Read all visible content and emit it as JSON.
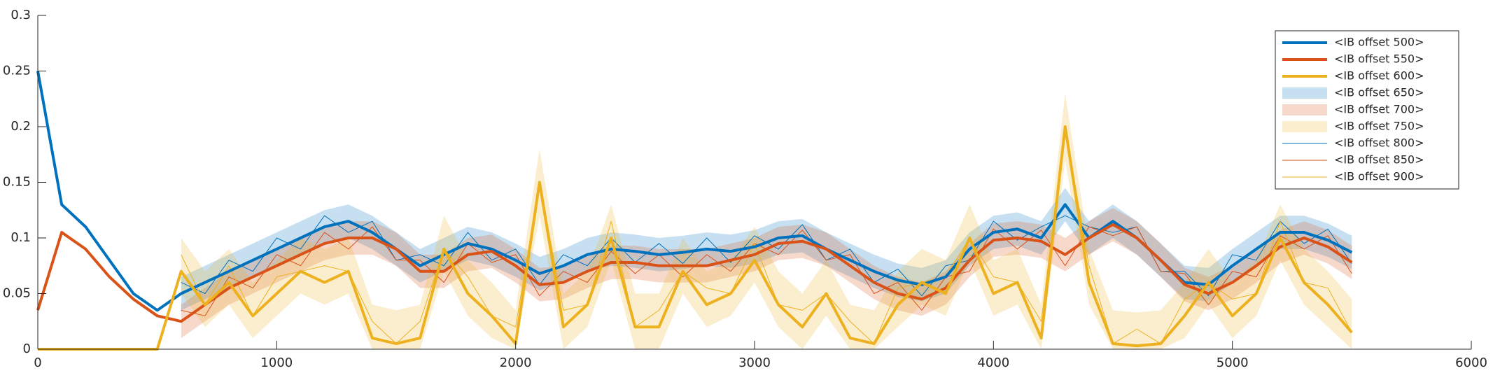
{
  "chart_data": {
    "type": "line",
    "x": [
      0,
      100,
      200,
      300,
      400,
      500,
      600,
      700,
      800,
      900,
      1000,
      1100,
      1200,
      1300,
      1400,
      1500,
      1600,
      1700,
      1800,
      1900,
      2000,
      2100,
      2200,
      2300,
      2400,
      2500,
      2600,
      2700,
      2800,
      2900,
      3000,
      3100,
      3200,
      3300,
      3400,
      3500,
      3600,
      3700,
      3800,
      3900,
      4000,
      4100,
      4200,
      4300,
      4400,
      4500,
      4600,
      4700,
      4800,
      4900,
      5000,
      5100,
      5200,
      5300,
      5400,
      5500
    ],
    "xlim": [
      0,
      6000
    ],
    "xticks": [
      0,
      1000,
      2000,
      3000,
      4000,
      5000,
      6000
    ],
    "ylim": [
      0,
      0.3
    ],
    "yticks": [
      0,
      0.05,
      0.1,
      0.15,
      0.2,
      0.25,
      0.3
    ],
    "legend": "northeast",
    "series": [
      {
        "name": "<IB offset 500>",
        "color": "#0072bd",
        "kind": "thick",
        "values": [
          0.25,
          0.13,
          0.11,
          0.08,
          0.05,
          0.035,
          0.05,
          0.06,
          0.07,
          0.08,
          0.09,
          0.1,
          0.11,
          0.115,
          0.105,
          0.09,
          0.075,
          0.085,
          0.095,
          0.09,
          0.08,
          0.068,
          0.075,
          0.085,
          0.09,
          0.088,
          0.085,
          0.087,
          0.09,
          0.088,
          0.092,
          0.1,
          0.102,
          0.09,
          0.08,
          0.07,
          0.062,
          0.058,
          0.065,
          0.09,
          0.105,
          0.108,
          0.1,
          0.13,
          0.1,
          0.115,
          0.1,
          0.08,
          0.06,
          0.058,
          0.075,
          0.09,
          0.105,
          0.105,
          0.098,
          0.087
        ]
      },
      {
        "name": "<IB offset 550>",
        "color": "#d95319",
        "kind": "thick",
        "values": [
          0.035,
          0.105,
          0.09,
          0.065,
          0.045,
          0.03,
          0.025,
          0.04,
          0.055,
          0.065,
          0.075,
          0.085,
          0.095,
          0.1,
          0.1,
          0.09,
          0.07,
          0.07,
          0.085,
          0.088,
          0.075,
          0.058,
          0.06,
          0.07,
          0.078,
          0.078,
          0.075,
          0.075,
          0.075,
          0.08,
          0.085,
          0.095,
          0.097,
          0.09,
          0.075,
          0.06,
          0.05,
          0.045,
          0.055,
          0.08,
          0.098,
          0.1,
          0.097,
          0.085,
          0.1,
          0.112,
          0.1,
          0.08,
          0.058,
          0.05,
          0.06,
          0.075,
          0.092,
          0.1,
          0.092,
          0.078
        ]
      },
      {
        "name": "<IB offset 600>",
        "color": "#edb120",
        "kind": "thick",
        "values": [
          0,
          0,
          0,
          0,
          0,
          0,
          0.07,
          0.04,
          0.06,
          0.03,
          0.05,
          0.07,
          0.06,
          0.07,
          0.01,
          0.005,
          0.01,
          0.09,
          0.05,
          0.03,
          0.005,
          0.15,
          0.02,
          0.04,
          0.1,
          0.02,
          0.02,
          0.07,
          0.04,
          0.05,
          0.08,
          0.04,
          0.02,
          0.05,
          0.01,
          0.005,
          0.04,
          0.06,
          0.05,
          0.1,
          0.05,
          0.06,
          0.01,
          0.2,
          0.06,
          0.005,
          0.003,
          0.005,
          0.03,
          0.06,
          0.03,
          0.05,
          0.1,
          0.06,
          0.04,
          0.015
        ]
      },
      {
        "name": "<IB offset 650>",
        "color": "#0072bd",
        "kind": "band",
        "lower": [
          null,
          null,
          null,
          null,
          null,
          null,
          0.035,
          0.045,
          0.055,
          0.065,
          0.075,
          0.085,
          0.095,
          0.1,
          0.09,
          0.075,
          0.06,
          0.07,
          0.08,
          0.075,
          0.065,
          0.053,
          0.06,
          0.07,
          0.075,
          0.073,
          0.07,
          0.072,
          0.075,
          0.073,
          0.077,
          0.085,
          0.087,
          0.075,
          0.065,
          0.055,
          0.047,
          0.043,
          0.05,
          0.075,
          0.09,
          0.093,
          0.085,
          0.115,
          0.085,
          0.1,
          0.085,
          0.065,
          0.045,
          0.043,
          0.06,
          0.075,
          0.09,
          0.09,
          0.083,
          0.072
        ],
        "upper": [
          null,
          null,
          null,
          null,
          null,
          null,
          0.065,
          0.075,
          0.085,
          0.095,
          0.105,
          0.115,
          0.125,
          0.13,
          0.12,
          0.105,
          0.09,
          0.1,
          0.11,
          0.105,
          0.095,
          0.083,
          0.09,
          0.1,
          0.105,
          0.103,
          0.1,
          0.102,
          0.105,
          0.103,
          0.107,
          0.115,
          0.117,
          0.105,
          0.095,
          0.085,
          0.077,
          0.073,
          0.08,
          0.105,
          0.12,
          0.123,
          0.115,
          0.145,
          0.115,
          0.13,
          0.115,
          0.095,
          0.075,
          0.073,
          0.09,
          0.105,
          0.12,
          0.12,
          0.113,
          0.102
        ]
      },
      {
        "name": "<IB offset 700>",
        "color": "#d95319",
        "kind": "band",
        "lower": [
          null,
          null,
          null,
          null,
          null,
          null,
          0.01,
          0.025,
          0.04,
          0.05,
          0.06,
          0.07,
          0.08,
          0.085,
          0.085,
          0.075,
          0.055,
          0.055,
          0.07,
          0.073,
          0.06,
          0.043,
          0.045,
          0.055,
          0.063,
          0.063,
          0.06,
          0.06,
          0.06,
          0.065,
          0.07,
          0.08,
          0.082,
          0.075,
          0.06,
          0.045,
          0.035,
          0.03,
          0.04,
          0.065,
          0.083,
          0.085,
          0.082,
          0.07,
          0.085,
          0.097,
          0.085,
          0.065,
          0.043,
          0.035,
          0.045,
          0.06,
          0.077,
          0.085,
          0.077,
          0.063
        ],
        "upper": [
          null,
          null,
          null,
          null,
          null,
          null,
          0.04,
          0.055,
          0.07,
          0.08,
          0.09,
          0.1,
          0.11,
          0.115,
          0.115,
          0.105,
          0.085,
          0.085,
          0.1,
          0.103,
          0.09,
          0.073,
          0.075,
          0.085,
          0.093,
          0.093,
          0.09,
          0.09,
          0.09,
          0.095,
          0.1,
          0.11,
          0.112,
          0.105,
          0.09,
          0.075,
          0.065,
          0.06,
          0.07,
          0.095,
          0.113,
          0.115,
          0.112,
          0.1,
          0.115,
          0.127,
          0.115,
          0.095,
          0.073,
          0.065,
          0.075,
          0.09,
          0.107,
          0.115,
          0.107,
          0.093
        ]
      },
      {
        "name": "<IB offset 750>",
        "color": "#edb120",
        "kind": "band",
        "lower": [
          null,
          null,
          null,
          null,
          null,
          null,
          0.05,
          0.02,
          0.04,
          0.01,
          0.03,
          0.05,
          0.04,
          0.05,
          0,
          0,
          0,
          0.07,
          0.03,
          0.01,
          0,
          0.12,
          0,
          0.02,
          0.08,
          0,
          0,
          0.05,
          0.02,
          0.03,
          0.06,
          0.02,
          0,
          0.03,
          0,
          0,
          0.02,
          0.04,
          0.03,
          0.08,
          0.03,
          0.04,
          0,
          0.17,
          0.04,
          0,
          0,
          0,
          0.01,
          0.04,
          0.01,
          0.03,
          0.08,
          0.04,
          0.02,
          0
        ],
        "upper": [
          null,
          null,
          null,
          null,
          null,
          null,
          0.1,
          0.07,
          0.09,
          0.06,
          0.08,
          0.1,
          0.09,
          0.1,
          0.04,
          0.035,
          0.04,
          0.12,
          0.08,
          0.06,
          0.035,
          0.18,
          0.05,
          0.07,
          0.13,
          0.05,
          0.05,
          0.1,
          0.07,
          0.08,
          0.11,
          0.07,
          0.05,
          0.08,
          0.04,
          0.035,
          0.07,
          0.09,
          0.08,
          0.13,
          0.08,
          0.09,
          0.04,
          0.23,
          0.09,
          0.035,
          0.033,
          0.035,
          0.06,
          0.09,
          0.06,
          0.08,
          0.13,
          0.09,
          0.07,
          0.045
        ]
      },
      {
        "name": "<IB offset 800>",
        "color": "#0072bd",
        "kind": "thin",
        "values": [
          null,
          null,
          null,
          null,
          null,
          null,
          0.06,
          0.05,
          0.08,
          0.07,
          0.1,
          0.09,
          0.12,
          0.105,
          0.115,
          0.08,
          0.085,
          0.075,
          0.105,
          0.08,
          0.09,
          0.058,
          0.085,
          0.075,
          0.1,
          0.078,
          0.095,
          0.077,
          0.1,
          0.078,
          0.102,
          0.09,
          0.112,
          0.08,
          0.09,
          0.06,
          0.072,
          0.048,
          0.075,
          0.08,
          0.115,
          0.098,
          0.11,
          0.12,
          0.11,
          0.105,
          0.11,
          0.07,
          0.07,
          0.048,
          0.085,
          0.08,
          0.115,
          0.095,
          0.108,
          0.077
        ]
      },
      {
        "name": "<IB offset 850>",
        "color": "#d95319",
        "kind": "thin",
        "values": [
          null,
          null,
          null,
          null,
          null,
          null,
          0.035,
          0.03,
          0.065,
          0.055,
          0.085,
          0.075,
          0.105,
          0.09,
          0.11,
          0.08,
          0.08,
          0.06,
          0.095,
          0.078,
          0.085,
          0.048,
          0.07,
          0.06,
          0.088,
          0.068,
          0.085,
          0.065,
          0.085,
          0.07,
          0.095,
          0.085,
          0.107,
          0.08,
          0.085,
          0.05,
          0.06,
          0.035,
          0.065,
          0.07,
          0.108,
          0.09,
          0.107,
          0.075,
          0.11,
          0.102,
          0.11,
          0.07,
          0.068,
          0.04,
          0.07,
          0.065,
          0.102,
          0.09,
          0.102,
          0.068
        ]
      },
      {
        "name": "<IB offset 900>",
        "color": "#edb120",
        "kind": "thin",
        "values": [
          null,
          null,
          null,
          null,
          null,
          null,
          0.085,
          0.04,
          0.075,
          0.03,
          0.065,
          0.07,
          0.075,
          0.07,
          0.025,
          0.005,
          0.025,
          0.09,
          0.065,
          0.03,
          0.02,
          0.15,
          0.035,
          0.04,
          0.115,
          0.02,
          0.035,
          0.07,
          0.055,
          0.05,
          0.095,
          0.04,
          0.035,
          0.05,
          0.025,
          0.005,
          0.055,
          0.06,
          0.065,
          0.1,
          0.065,
          0.06,
          0.025,
          0.2,
          0.075,
          0.005,
          0.018,
          0.005,
          0.045,
          0.06,
          0.045,
          0.05,
          0.115,
          0.06,
          0.055,
          0.015
        ]
      }
    ]
  }
}
